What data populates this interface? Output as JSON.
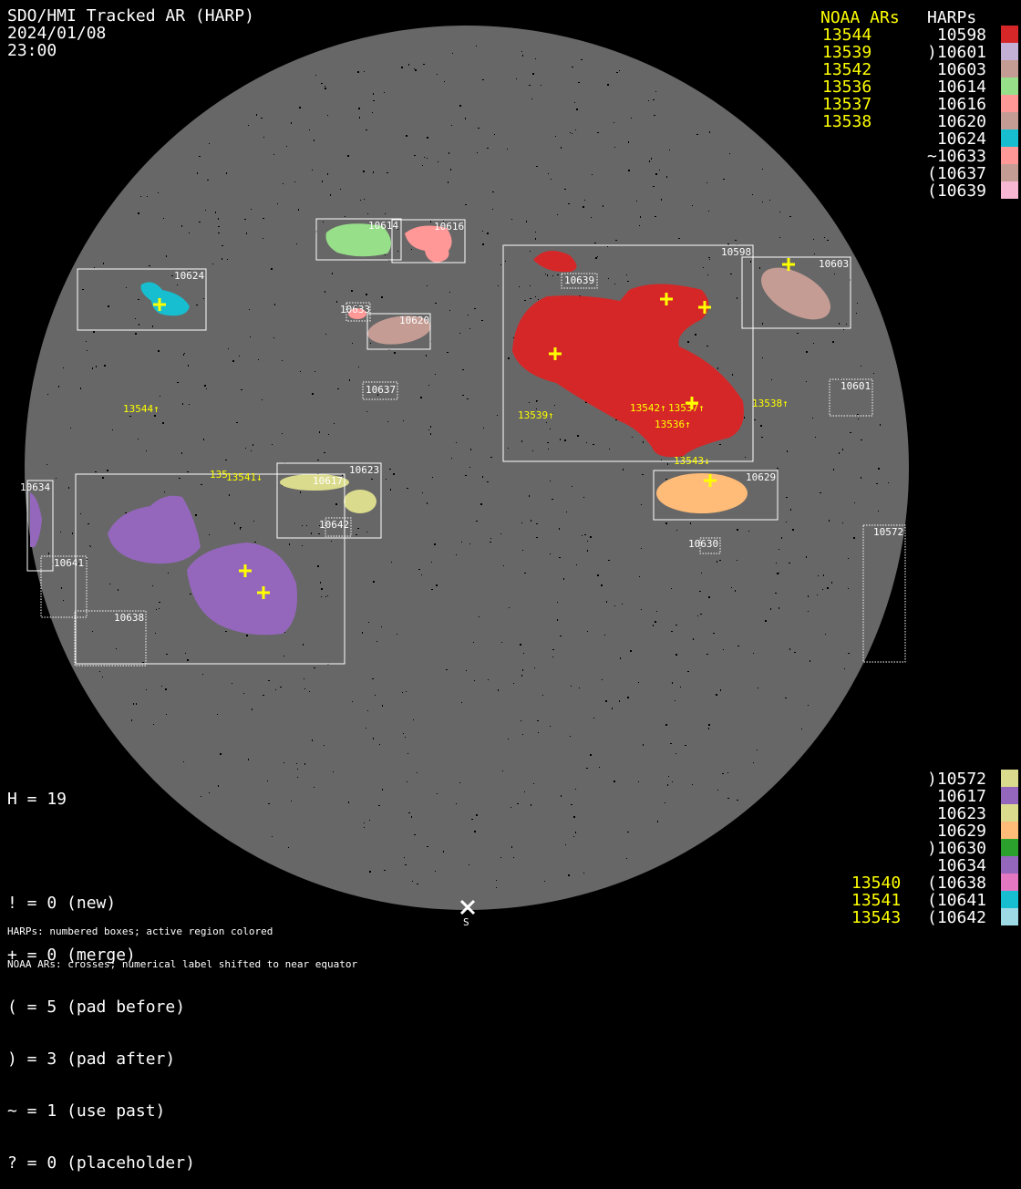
{
  "header": {
    "title": "SDO/HMI Tracked AR (HARP)",
    "date": "2024/01/08",
    "time": "23:00"
  },
  "legend_top": {
    "noaa_header": "NOAA ARs",
    "harp_header": "HARPs",
    "noaa": [
      "13544",
      "13539",
      "13542",
      "13536",
      "13537",
      "13538"
    ],
    "harps": [
      {
        "label": " 10598",
        "color": "#d62728"
      },
      {
        "label": ")10601",
        "color": "#c5b0d5"
      },
      {
        "label": " 10603",
        "color": "#c49c94"
      },
      {
        "label": " 10614",
        "color": "#98df8a"
      },
      {
        "label": " 10616",
        "color": "#ff9896"
      },
      {
        "label": " 10620",
        "color": "#c49c94"
      },
      {
        "label": " 10624",
        "color": "#17becf"
      },
      {
        "label": "~10633",
        "color": "#ff9896"
      },
      {
        "label": "(10637",
        "color": "#c49c94"
      },
      {
        "label": "(10639",
        "color": "#f7b6d2"
      }
    ]
  },
  "legend_bottom": {
    "noaa": [
      "13540",
      "13541",
      "13543"
    ],
    "harps": [
      {
        "label": ")10572",
        "color": "#dbdb8d"
      },
      {
        "label": " 10617",
        "color": "#9467bd"
      },
      {
        "label": " 10623",
        "color": "#dbdb8d"
      },
      {
        "label": " 10629",
        "color": "#ffbb78"
      },
      {
        "label": ")10630",
        "color": "#2ca02c"
      },
      {
        "label": " 10634",
        "color": "#9467bd"
      },
      {
        "label": "(10638",
        "color": "#e377c2"
      },
      {
        "label": "(10641",
        "color": "#17becf"
      },
      {
        "label": "(10642",
        "color": "#9edae5"
      }
    ]
  },
  "stats": {
    "h": "H = 19",
    "lines": [
      "! = 0 (new)",
      "+ = 0 (merge)",
      "( = 5 (pad before)",
      ") = 3 (pad after)",
      "~ = 1 (use past)",
      "? = 0 (placeholder)"
    ]
  },
  "footer": {
    "line1": "HARPs: numbered boxes; active region colored",
    "line2": "NOAA ARs: crosses; numerical label shifted to near equator",
    "south_marker": "S"
  },
  "disk": {
    "colors": {
      "disk": "#676767",
      "background": "#000000",
      "box": "#ffffff",
      "noaa": "#ffff00"
    },
    "harp_labels": [
      "10598",
      "10603",
      "10614",
      "10616",
      "10620",
      "10624",
      "10633",
      "10637",
      "10639",
      "10601",
      "10629",
      "10630",
      "10572",
      "10623",
      "10617",
      "10642",
      "10634",
      "10641",
      "10638"
    ],
    "noaa_labels": [
      "13544↑",
      "13539↑",
      "13542↑",
      "13537↑",
      "13536↑",
      "13538↑",
      "13543↓",
      "13541↓",
      "135"
    ]
  }
}
